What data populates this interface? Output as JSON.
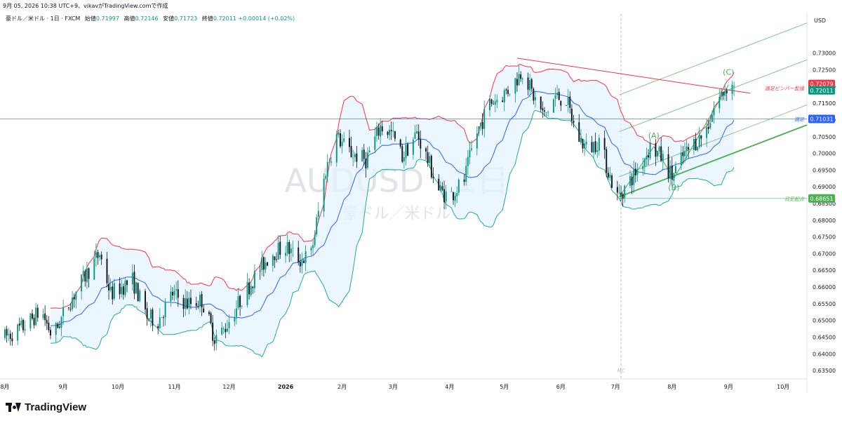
{
  "header": {
    "timestamp": "9月 05, 2026 10:38 UTC+9、vikavがTradingView.comで作成"
  },
  "symbol_bar": {
    "title": "豪ドル／米ドル · 1日 · FXCM",
    "open_label": "始値",
    "open": "0.71997",
    "high_label": "高値",
    "high": "0.72146",
    "low_label": "安値",
    "low": "0.71723",
    "close_label": "終値",
    "close": "0.72011",
    "change": "+0.00014 (+0.02%)"
  },
  "currency": "USD",
  "watermark": {
    "main": "AUDUSD・1日",
    "sub": "豪ドル／米ドル"
  },
  "brand": "TradingView",
  "colors": {
    "up": "#089981",
    "down": "#131722",
    "upper_band": "#f23645",
    "middle_band": "#2962ff",
    "lower_band": "#22ab94",
    "band_fill": "#e3f2fd",
    "channel": "#4caf50",
    "resistance": "#f23645",
    "support_h": "#2962ff",
    "low_h": "#4caf50"
  },
  "chart_data": {
    "type": "candlestick",
    "instrument": "AUDUSD",
    "timeframe": "1日",
    "ylim": [
      0.6325,
      0.7375
    ],
    "y_ticks": [
      "0.73000",
      "0.72500",
      "0.72000",
      "0.71500",
      "0.71000",
      "0.70500",
      "0.70000",
      "0.69500",
      "0.69000",
      "0.68500",
      "0.68000",
      "0.67500",
      "0.67000",
      "0.66500",
      "0.66000",
      "0.65500",
      "0.65000",
      "0.64500",
      "0.64000",
      "0.63500"
    ],
    "x_ticks": [
      {
        "label": "8月",
        "day": 0
      },
      {
        "label": "9月",
        "day": 32
      },
      {
        "label": "10月",
        "day": 62
      },
      {
        "label": "11月",
        "day": 93
      },
      {
        "label": "12月",
        "day": 123
      },
      {
        "label": "2026",
        "day": 154
      },
      {
        "label": "2月",
        "day": 185
      },
      {
        "label": "3月",
        "day": 213
      },
      {
        "label": "4月",
        "day": 244
      },
      {
        "label": "5月",
        "day": 274
      },
      {
        "label": "6月",
        "day": 305
      },
      {
        "label": "7月",
        "day": 335
      },
      {
        "label": "8月",
        "day": 366
      },
      {
        "label": "9月",
        "day": 397
      },
      {
        "label": "10月",
        "day": 427
      }
    ],
    "total_days": 440,
    "last_day": 400,
    "trend_path": [
      [
        0,
        0.645
      ],
      [
        10,
        0.648
      ],
      [
        20,
        0.653
      ],
      [
        26,
        0.645
      ],
      [
        36,
        0.656
      ],
      [
        46,
        0.665
      ],
      [
        52,
        0.67
      ],
      [
        58,
        0.658
      ],
      [
        64,
        0.66
      ],
      [
        70,
        0.662
      ],
      [
        78,
        0.651
      ],
      [
        84,
        0.65
      ],
      [
        92,
        0.658
      ],
      [
        100,
        0.655
      ],
      [
        108,
        0.656
      ],
      [
        115,
        0.645
      ],
      [
        120,
        0.647
      ],
      [
        128,
        0.655
      ],
      [
        138,
        0.664
      ],
      [
        146,
        0.67
      ],
      [
        154,
        0.672
      ],
      [
        162,
        0.668
      ],
      [
        168,
        0.67
      ],
      [
        176,
        0.695
      ],
      [
        182,
        0.705
      ],
      [
        190,
        0.7
      ],
      [
        198,
        0.698
      ],
      [
        206,
        0.708
      ],
      [
        212,
        0.706
      ],
      [
        218,
        0.699
      ],
      [
        226,
        0.706
      ],
      [
        232,
        0.698
      ],
      [
        238,
        0.689
      ],
      [
        244,
        0.687
      ],
      [
        252,
        0.692
      ],
      [
        258,
        0.705
      ],
      [
        266,
        0.715
      ],
      [
        272,
        0.717
      ],
      [
        278,
        0.72
      ],
      [
        284,
        0.725
      ],
      [
        290,
        0.717
      ],
      [
        296,
        0.711
      ],
      [
        302,
        0.717
      ],
      [
        308,
        0.716
      ],
      [
        314,
        0.705
      ],
      [
        320,
        0.701
      ],
      [
        326,
        0.704
      ],
      [
        332,
        0.693
      ],
      [
        336,
        0.687
      ],
      [
        342,
        0.691
      ],
      [
        348,
        0.696
      ],
      [
        354,
        0.702
      ],
      [
        360,
        0.699
      ],
      [
        366,
        0.693
      ],
      [
        372,
        0.699
      ],
      [
        378,
        0.703
      ],
      [
        384,
        0.706
      ],
      [
        390,
        0.715
      ],
      [
        396,
        0.72
      ],
      [
        400,
        0.7201
      ]
    ],
    "last_ohlc": {
      "open": 0.71997,
      "high": 0.72146,
      "low": 0.71723,
      "close": 0.72011
    },
    "indicators": {
      "bollinger_bands": {
        "period": 20,
        "std_dev": 2
      }
    },
    "annotations": [
      {
        "text": "(A)",
        "day": 356,
        "price": 0.7045
      },
      {
        "text": "(B)",
        "day": 367,
        "price": 0.689
      },
      {
        "text": "(C)",
        "day": 397,
        "price": 0.7235
      },
      {
        "text": "MC",
        "day": 338,
        "price": 0.6345
      }
    ],
    "horizontal_lines": [
      {
        "label": "週足",
        "price": 0.71031,
        "value": "0.71031",
        "color": "#2962ff",
        "full_width": true
      },
      {
        "label": "日足起点",
        "price": 0.68651,
        "value": "0.68651",
        "color": "#4caf50",
        "from_day": 337
      }
    ],
    "resistance_line": {
      "label": "週足ピンバー髭値",
      "from": [
        281,
        0.7285
      ],
      "to": [
        409,
        0.718
      ],
      "value": "0.72079"
    },
    "current_price": {
      "value": "0.72011",
      "price": 0.72011
    },
    "channel": {
      "base_from": [
        337,
        0.687
      ],
      "base_to": [
        440,
        0.7085
      ],
      "parallels": [
        0.006,
        0.0195,
        0.0305
      ],
      "base_emphasis": true
    },
    "mc_vertical_day": 338
  }
}
